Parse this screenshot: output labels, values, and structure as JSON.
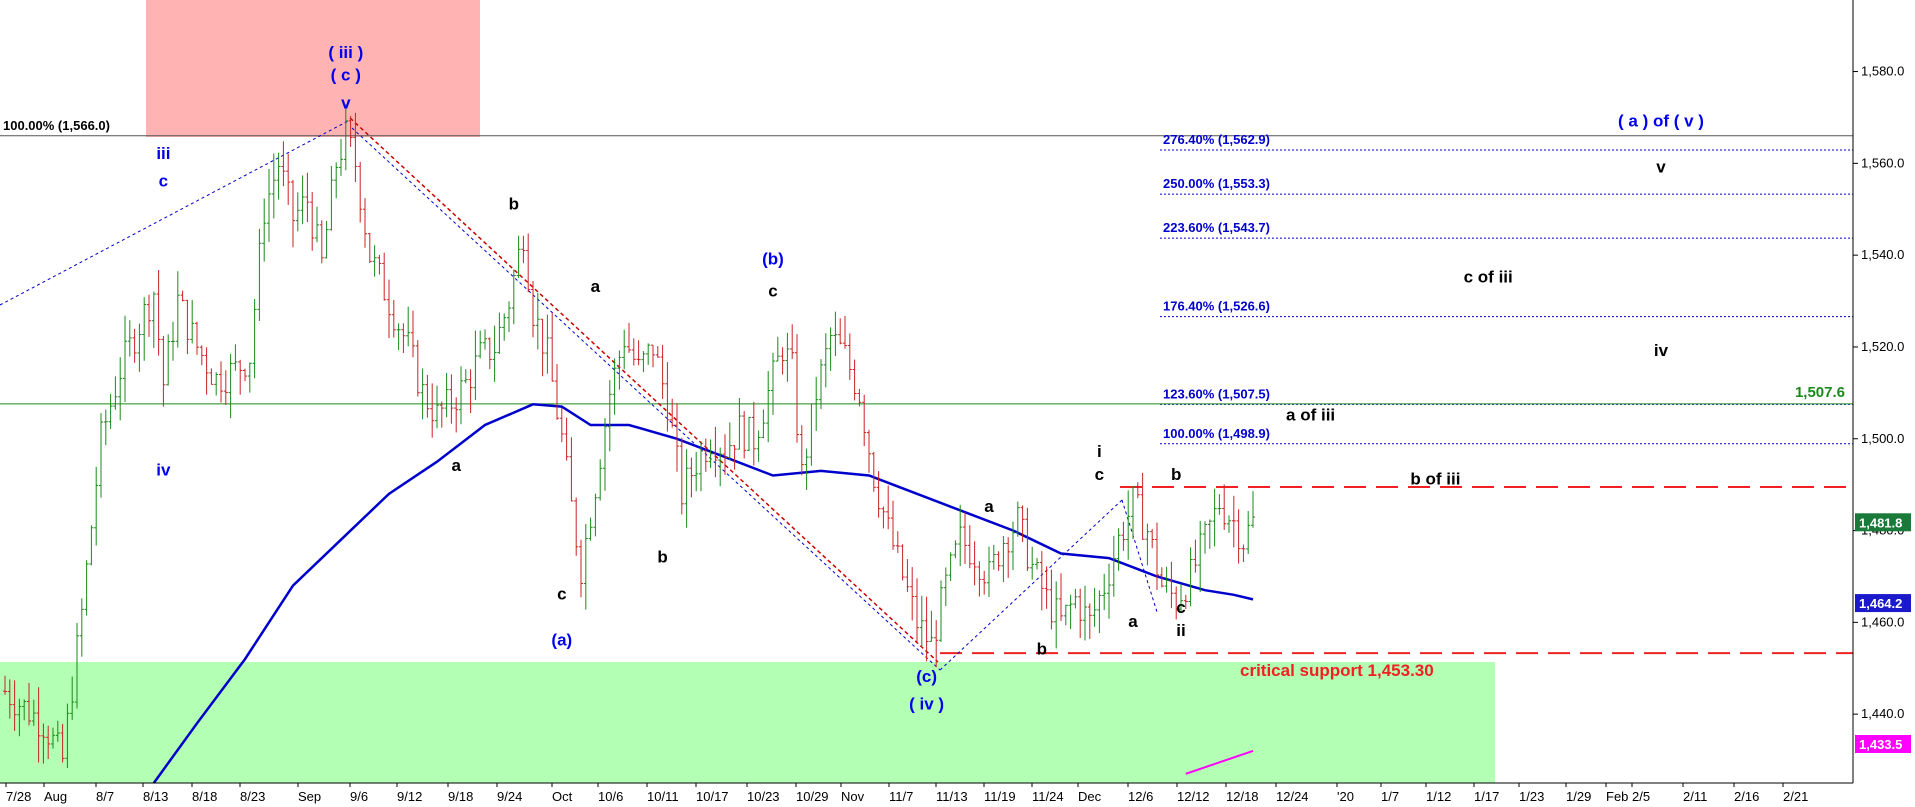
{
  "chart_data": {
    "type": "candlestick",
    "ylim": [
      1425,
      1590
    ],
    "y_ticks": [
      "1,440.0",
      "1,460.0",
      "1,480.0",
      "1,500.0",
      "1,520.0",
      "1,540.0",
      "1,560.0",
      "1,580.0"
    ],
    "x_ticks": [
      "7/28",
      "Aug",
      "8/7",
      "8/13",
      "8/18",
      "8/23",
      "Sep",
      "9/6",
      "9/12",
      "9/18",
      "9/24",
      "Oct",
      "10/6",
      "10/11",
      "10/17",
      "10/23",
      "10/29",
      "Nov",
      "11/7",
      "11/13",
      "11/19",
      "11/24",
      "Dec",
      "12/6",
      "12/12",
      "12/18",
      "12/24",
      "'20",
      "1/7",
      "1/12",
      "1/17",
      "1/23",
      "1/29",
      "Feb",
      "2/5",
      "2/11",
      "2/16",
      "2/21"
    ],
    "price_path": [
      [
        0,
        1445
      ],
      [
        8,
        1438
      ],
      [
        12,
        1430
      ],
      [
        16,
        1462
      ],
      [
        20,
        1500
      ],
      [
        24,
        1515
      ],
      [
        28,
        1525
      ],
      [
        31,
        1532
      ],
      [
        33,
        1512
      ],
      [
        36,
        1530
      ],
      [
        40,
        1520
      ],
      [
        44,
        1513
      ],
      [
        48,
        1515
      ],
      [
        51,
        1518
      ],
      [
        54,
        1550
      ],
      [
        57,
        1560
      ],
      [
        60,
        1548
      ],
      [
        63,
        1552
      ],
      [
        66,
        1538
      ],
      [
        69,
        1560
      ],
      [
        71,
        1566
      ],
      [
        73,
        1560
      ],
      [
        76,
        1540
      ],
      [
        80,
        1530
      ],
      [
        84,
        1520
      ],
      [
        87,
        1510
      ],
      [
        90,
        1505
      ],
      [
        93,
        1508
      ],
      [
        96,
        1512
      ],
      [
        99,
        1518
      ],
      [
        102,
        1520
      ],
      [
        105,
        1530
      ],
      [
        108,
        1545
      ],
      [
        110,
        1528
      ],
      [
        113,
        1518
      ],
      [
        116,
        1500
      ],
      [
        118,
        1485
      ],
      [
        120,
        1472
      ],
      [
        123,
        1490
      ],
      [
        126,
        1510
      ],
      [
        129,
        1522
      ],
      [
        132,
        1515
      ],
      [
        135,
        1520
      ],
      [
        138,
        1508
      ],
      [
        141,
        1488
      ],
      [
        144,
        1495
      ],
      [
        147,
        1500
      ],
      [
        150,
        1498
      ],
      [
        153,
        1502
      ],
      [
        156,
        1500
      ],
      [
        159,
        1510
      ],
      [
        162,
        1520
      ],
      [
        164,
        1515
      ],
      [
        166,
        1492
      ],
      [
        169,
        1510
      ],
      [
        172,
        1522
      ],
      [
        175,
        1518
      ],
      [
        178,
        1510
      ],
      [
        181,
        1492
      ],
      [
        184,
        1480
      ],
      [
        187,
        1470
      ],
      [
        190,
        1460
      ],
      [
        193,
        1455
      ],
      [
        196,
        1468
      ],
      [
        199,
        1478
      ],
      [
        202,
        1475
      ],
      [
        205,
        1470
      ],
      [
        208,
        1478
      ],
      [
        211,
        1482
      ],
      [
        214,
        1472
      ],
      [
        217,
        1465
      ],
      [
        220,
        1460
      ],
      [
        223,
        1465
      ],
      [
        226,
        1460
      ],
      [
        229,
        1468
      ],
      [
        232,
        1478
      ],
      [
        235,
        1486
      ],
      [
        238,
        1480
      ],
      [
        241,
        1468
      ],
      [
        244,
        1465
      ],
      [
        247,
        1470
      ],
      [
        250,
        1478
      ],
      [
        253,
        1486
      ],
      [
        256,
        1482
      ],
      [
        258,
        1478
      ],
      [
        260,
        1481.8
      ]
    ],
    "moving_average": {
      "color": "#0000cc",
      "points": [
        [
          31,
          1425
        ],
        [
          40,
          1438
        ],
        [
          50,
          1452
        ],
        [
          60,
          1468
        ],
        [
          70,
          1478
        ],
        [
          80,
          1488
        ],
        [
          90,
          1495
        ],
        [
          100,
          1503
        ],
        [
          110,
          1507.5
        ],
        [
          116,
          1507
        ],
        [
          122,
          1503
        ],
        [
          130,
          1503
        ],
        [
          140,
          1500
        ],
        [
          150,
          1496
        ],
        [
          160,
          1492
        ],
        [
          170,
          1493
        ],
        [
          180,
          1492
        ],
        [
          190,
          1488
        ],
        [
          200,
          1484
        ],
        [
          210,
          1480
        ],
        [
          220,
          1475
        ],
        [
          230,
          1474
        ],
        [
          240,
          1470
        ],
        [
          250,
          1467
        ],
        [
          256,
          1466
        ],
        [
          260,
          1465
        ]
      ]
    },
    "magenta_line": {
      "color": "#ff00ff",
      "points": [
        [
          246,
          1427
        ],
        [
          260,
          1432
        ]
      ]
    },
    "fib_levels": [
      {
        "label": "276.40% (1,562.9)",
        "value": 1562.9
      },
      {
        "label": "250.00% (1,553.3)",
        "value": 1553.3
      },
      {
        "label": "223.60% (1,543.7)",
        "value": 1543.7
      },
      {
        "label": "176.40% (1,526.6)",
        "value": 1526.6
      },
      {
        "label": "123.60% (1,507.5)",
        "value": 1507.5
      },
      {
        "label": "100.00% (1,498.9)",
        "value": 1498.9
      }
    ],
    "top_level": {
      "label": "100.00% (1,566.0)",
      "value": 1566.0
    },
    "green_level": {
      "label": "1,507.6",
      "value": 1507.6
    },
    "resistance_level": {
      "value": 1489.5
    },
    "critical_support": {
      "label": "critical support 1,453.30",
      "value": 1453.3
    },
    "price_tags": [
      {
        "label": "1,481.8",
        "value": 1481.8,
        "color": "#1a7a3a"
      },
      {
        "label": "1,464.2",
        "value": 1464.2,
        "color": "#1a1acc"
      },
      {
        "label": "1,433.5",
        "value": 1433.5,
        "color": "#ff00ff"
      }
    ],
    "wave_labels": [
      {
        "text": "( iii )",
        "x": 71,
        "y": 1583,
        "color": "#0000ee"
      },
      {
        "text": "( c )",
        "x": 71,
        "y": 1578,
        "color": "#0000ee"
      },
      {
        "text": "v",
        "x": 71,
        "y": 1572,
        "color": "#0000ee"
      },
      {
        "text": "iii",
        "x": 33,
        "y": 1561,
        "color": "#0000ee"
      },
      {
        "text": "c",
        "x": 33,
        "y": 1555,
        "color": "#0000ee"
      },
      {
        "text": "iv",
        "x": 33,
        "y": 1492,
        "color": "#0000ee"
      },
      {
        "text": "b",
        "x": 106,
        "y": 1550,
        "color": "#000000"
      },
      {
        "text": "a",
        "x": 94,
        "y": 1493,
        "color": "#000000"
      },
      {
        "text": "a",
        "x": 123,
        "y": 1532,
        "color": "#000000"
      },
      {
        "text": "c",
        "x": 116,
        "y": 1465,
        "color": "#000000"
      },
      {
        "text": "(a)",
        "x": 116,
        "y": 1455,
        "color": "#0000ee"
      },
      {
        "text": "b",
        "x": 137,
        "y": 1473,
        "color": "#000000"
      },
      {
        "text": "(b)",
        "x": 160,
        "y": 1538,
        "color": "#0000ee"
      },
      {
        "text": "c",
        "x": 160,
        "y": 1531,
        "color": "#000000"
      },
      {
        "text": "(c)",
        "x": 192,
        "y": 1447,
        "color": "#0000ee"
      },
      {
        "text": "( iv )",
        "x": 192,
        "y": 1441,
        "color": "#0000ee"
      },
      {
        "text": "a",
        "x": 205,
        "y": 1484,
        "color": "#000000"
      },
      {
        "text": "b",
        "x": 216,
        "y": 1453,
        "color": "#000000"
      },
      {
        "text": "i",
        "x": 228,
        "y": 1496,
        "color": "#000000"
      },
      {
        "text": "c",
        "x": 228,
        "y": 1491,
        "color": "#000000"
      },
      {
        "text": "b",
        "x": 244,
        "y": 1491,
        "color": "#000000"
      },
      {
        "text": "a",
        "x": 235,
        "y": 1459,
        "color": "#000000"
      },
      {
        "text": "c",
        "x": 245,
        "y": 1462,
        "color": "#000000"
      },
      {
        "text": "ii",
        "x": 245,
        "y": 1457,
        "color": "#000000"
      },
      {
        "text": "a of iii",
        "x": 272,
        "y": 1504,
        "color": "#000000"
      },
      {
        "text": "b of iii",
        "x": 298,
        "y": 1490,
        "color": "#000000"
      },
      {
        "text": "c of iii",
        "x": 309,
        "y": 1534,
        "color": "#000000"
      },
      {
        "text": "iv",
        "x": 345,
        "y": 1518,
        "color": "#000000"
      },
      {
        "text": "v",
        "x": 345,
        "y": 1558,
        "color": "#000000"
      },
      {
        "text": "( a ) of ( v )",
        "x": 345,
        "y": 1568,
        "color": "#0000ee"
      }
    ],
    "grid": false
  }
}
